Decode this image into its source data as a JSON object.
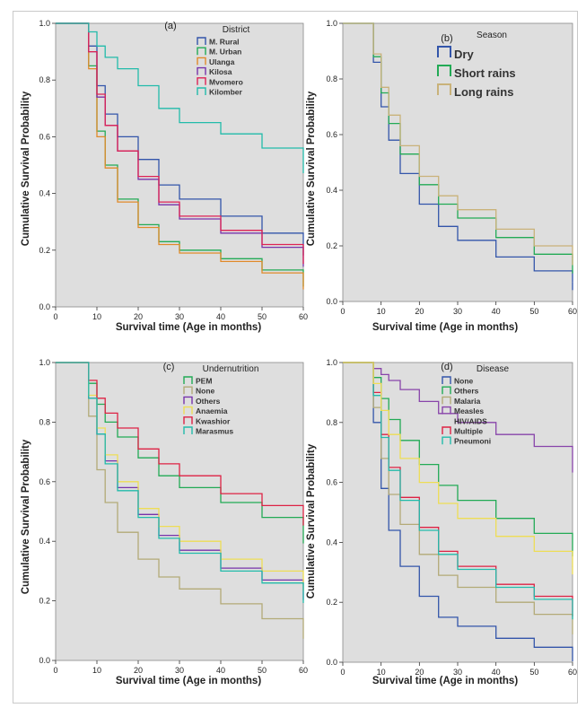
{
  "chart_data": [
    {
      "type": "line",
      "panel_label": "(a)",
      "xlabel": "Survival time (Age in months)",
      "ylabel": "Cumulative Survival Probability",
      "xlim": [
        0,
        60
      ],
      "ylim": [
        0,
        1.0
      ],
      "xticks": [
        0,
        10,
        20,
        30,
        40,
        50,
        60
      ],
      "yticks": [
        0.0,
        0.2,
        0.4,
        0.6,
        0.8,
        1.0
      ],
      "grid": false,
      "legend_title": "District",
      "legend_position": "top-right",
      "legend_size": "small",
      "series": [
        {
          "name": "M. Rural",
          "color": "#3355aa",
          "x": [
            0,
            6,
            8,
            10,
            12,
            15,
            20,
            25,
            30,
            40,
            50,
            60
          ],
          "y": [
            1.0,
            1.0,
            0.92,
            0.78,
            0.68,
            0.6,
            0.52,
            0.43,
            0.38,
            0.32,
            0.26,
            0.21
          ]
        },
        {
          "name": "M. Urban",
          "color": "#22aa55",
          "x": [
            0,
            6,
            8,
            10,
            12,
            15,
            20,
            25,
            30,
            40,
            50,
            60
          ],
          "y": [
            1.0,
            1.0,
            0.85,
            0.62,
            0.5,
            0.38,
            0.29,
            0.23,
            0.2,
            0.17,
            0.13,
            0.1
          ]
        },
        {
          "name": "Ulanga",
          "color": "#e08a2a",
          "x": [
            0,
            6,
            8,
            10,
            12,
            15,
            20,
            25,
            30,
            40,
            50,
            60
          ],
          "y": [
            1.0,
            1.0,
            0.84,
            0.6,
            0.49,
            0.37,
            0.28,
            0.22,
            0.19,
            0.16,
            0.12,
            0.09
          ]
        },
        {
          "name": "Kilosa",
          "color": "#7733aa",
          "x": [
            0,
            6,
            8,
            10,
            12,
            15,
            20,
            25,
            30,
            40,
            50,
            60
          ],
          "y": [
            1.0,
            1.0,
            0.9,
            0.74,
            0.64,
            0.55,
            0.45,
            0.36,
            0.31,
            0.26,
            0.21,
            0.17
          ]
        },
        {
          "name": "Mvomero",
          "color": "#dd2255",
          "x": [
            0,
            6,
            8,
            10,
            12,
            15,
            20,
            25,
            30,
            40,
            50,
            60
          ],
          "y": [
            1.0,
            1.0,
            0.9,
            0.75,
            0.64,
            0.55,
            0.46,
            0.37,
            0.32,
            0.27,
            0.22,
            0.18
          ]
        },
        {
          "name": "Kilomber",
          "color": "#22bbaa",
          "x": [
            0,
            6,
            8,
            10,
            12,
            15,
            20,
            25,
            30,
            40,
            50,
            60
          ],
          "y": [
            1.0,
            1.0,
            0.97,
            0.92,
            0.88,
            0.84,
            0.78,
            0.7,
            0.65,
            0.61,
            0.56,
            0.5
          ]
        }
      ]
    },
    {
      "type": "line",
      "panel_label": "(b)",
      "xlabel": "Survival time (Age in months)",
      "ylabel": "Cumulative Survival Probability",
      "xlim": [
        0,
        60
      ],
      "ylim": [
        0,
        1.0
      ],
      "xticks": [
        0,
        10,
        20,
        30,
        40,
        50,
        60
      ],
      "yticks": [
        0.0,
        0.2,
        0.4,
        0.6,
        0.8,
        1.0
      ],
      "grid": false,
      "legend_title": "Season",
      "legend_position": "top-right",
      "legend_size": "large",
      "series": [
        {
          "name": "Dry",
          "color": "#3355aa",
          "x": [
            0,
            6,
            8,
            10,
            12,
            15,
            20,
            25,
            30,
            40,
            50,
            60
          ],
          "y": [
            1.0,
            1.0,
            0.86,
            0.7,
            0.58,
            0.46,
            0.35,
            0.27,
            0.22,
            0.16,
            0.11,
            0.07
          ]
        },
        {
          "name": "Short rains",
          "color": "#22aa55",
          "x": [
            0,
            6,
            8,
            10,
            12,
            15,
            20,
            25,
            30,
            40,
            50,
            60
          ],
          "y": [
            1.0,
            1.0,
            0.88,
            0.75,
            0.64,
            0.53,
            0.42,
            0.35,
            0.3,
            0.23,
            0.17,
            0.13
          ]
        },
        {
          "name": "Long rains",
          "color": "#c9b27a",
          "x": [
            0,
            6,
            8,
            10,
            12,
            15,
            20,
            25,
            30,
            40,
            50,
            60
          ],
          "y": [
            1.0,
            1.0,
            0.89,
            0.77,
            0.67,
            0.56,
            0.45,
            0.38,
            0.33,
            0.26,
            0.2,
            0.16
          ]
        }
      ]
    },
    {
      "type": "line",
      "panel_label": "(c)",
      "xlabel": "Survival time (Age in months)",
      "ylabel": "Cumulative Survival Probability",
      "xlim": [
        0,
        60
      ],
      "ylim": [
        0,
        1.0
      ],
      "xticks": [
        0,
        10,
        20,
        30,
        40,
        50,
        60
      ],
      "yticks": [
        0.0,
        0.2,
        0.4,
        0.6,
        0.8,
        1.0
      ],
      "grid": false,
      "legend_title": "Undernutrition",
      "legend_position": "top-right",
      "legend_size": "small",
      "series": [
        {
          "name": "PEM",
          "color": "#22aa55",
          "x": [
            0,
            6,
            8,
            10,
            12,
            15,
            20,
            25,
            30,
            40,
            50,
            60
          ],
          "y": [
            1.0,
            1.0,
            0.93,
            0.86,
            0.8,
            0.75,
            0.68,
            0.62,
            0.58,
            0.53,
            0.48,
            0.42
          ]
        },
        {
          "name": "None",
          "color": "#b3aa77",
          "x": [
            0,
            6,
            8,
            10,
            12,
            15,
            20,
            25,
            30,
            40,
            50,
            60
          ],
          "y": [
            1.0,
            1.0,
            0.82,
            0.64,
            0.53,
            0.43,
            0.34,
            0.28,
            0.24,
            0.19,
            0.14,
            0.1
          ]
        },
        {
          "name": "Others",
          "color": "#7733aa",
          "x": [
            0,
            6,
            8,
            10,
            12,
            15,
            20,
            25,
            30,
            40,
            50,
            60
          ],
          "y": [
            1.0,
            1.0,
            0.88,
            0.76,
            0.67,
            0.58,
            0.49,
            0.42,
            0.37,
            0.31,
            0.27,
            0.23
          ]
        },
        {
          "name": "Anaemia",
          "color": "#eedd55",
          "x": [
            0,
            6,
            8,
            10,
            12,
            15,
            20,
            25,
            30,
            40,
            50,
            60
          ],
          "y": [
            1.0,
            1.0,
            0.89,
            0.78,
            0.69,
            0.6,
            0.51,
            0.45,
            0.4,
            0.34,
            0.3,
            0.26
          ]
        },
        {
          "name": "Kwashior",
          "color": "#dd2244",
          "x": [
            0,
            6,
            8,
            10,
            12,
            15,
            20,
            25,
            30,
            40,
            50,
            60
          ],
          "y": [
            1.0,
            1.0,
            0.94,
            0.88,
            0.83,
            0.78,
            0.71,
            0.66,
            0.62,
            0.56,
            0.52,
            0.48
          ]
        },
        {
          "name": "Marasmus",
          "color": "#22bbaa",
          "x": [
            0,
            6,
            8,
            10,
            12,
            15,
            20,
            25,
            30,
            40,
            50,
            60
          ],
          "y": [
            1.0,
            1.0,
            0.88,
            0.76,
            0.66,
            0.57,
            0.48,
            0.41,
            0.36,
            0.3,
            0.26,
            0.22
          ]
        }
      ]
    },
    {
      "type": "line",
      "panel_label": "(d)",
      "xlabel": "Survival time (Age in months)",
      "ylabel": "Cumulative Survival Probability",
      "xlim": [
        0,
        60
      ],
      "ylim": [
        0,
        1.0
      ],
      "xticks": [
        0,
        10,
        20,
        30,
        40,
        50,
        60
      ],
      "yticks": [
        0.0,
        0.2,
        0.4,
        0.6,
        0.8,
        1.0
      ],
      "grid": false,
      "legend_title": "Disease",
      "legend_position": "top-right",
      "legend_size": "small",
      "series": [
        {
          "name": "None",
          "color": "#3355aa",
          "x": [
            0,
            6,
            8,
            10,
            12,
            15,
            20,
            25,
            30,
            40,
            50,
            60
          ],
          "y": [
            1.0,
            1.0,
            0.8,
            0.58,
            0.44,
            0.32,
            0.22,
            0.15,
            0.12,
            0.08,
            0.05,
            0.03
          ]
        },
        {
          "name": "Others",
          "color": "#22aa55",
          "x": [
            0,
            6,
            8,
            10,
            12,
            15,
            20,
            25,
            30,
            40,
            50,
            60
          ],
          "y": [
            1.0,
            1.0,
            0.95,
            0.88,
            0.81,
            0.74,
            0.66,
            0.59,
            0.54,
            0.48,
            0.43,
            0.38
          ]
        },
        {
          "name": "Malaria",
          "color": "#b3aa77",
          "x": [
            0,
            6,
            8,
            10,
            12,
            15,
            20,
            25,
            30,
            40,
            50,
            60
          ],
          "y": [
            1.0,
            1.0,
            0.85,
            0.68,
            0.56,
            0.46,
            0.36,
            0.29,
            0.25,
            0.2,
            0.16,
            0.12
          ]
        },
        {
          "name": "Measles",
          "color": "#8844aa",
          "x": [
            0,
            6,
            8,
            10,
            12,
            15,
            20,
            25,
            30,
            40,
            50,
            60
          ],
          "y": [
            1.0,
            1.0,
            0.98,
            0.96,
            0.94,
            0.91,
            0.87,
            0.83,
            0.8,
            0.76,
            0.72,
            0.66
          ]
        },
        {
          "name": "HIV/AIDS",
          "color": "",
          "x": [],
          "y": []
        },
        {
          "name": "Multiple",
          "color": "#dd2244",
          "x": [
            0,
            6,
            8,
            10,
            12,
            15,
            20,
            25,
            30,
            40,
            50,
            60
          ],
          "y": [
            1.0,
            1.0,
            0.9,
            0.76,
            0.65,
            0.55,
            0.45,
            0.37,
            0.32,
            0.26,
            0.22,
            0.18
          ]
        },
        {
          "name": "Pneumoni",
          "color": "#22bbaa",
          "x": [
            0,
            6,
            8,
            10,
            12,
            15,
            20,
            25,
            30,
            40,
            50,
            60
          ],
          "y": [
            1.0,
            1.0,
            0.89,
            0.75,
            0.64,
            0.54,
            0.44,
            0.36,
            0.31,
            0.25,
            0.21,
            0.17
          ]
        },
        {
          "name": "",
          "color": "#eedd55",
          "x": [
            0,
            6,
            8,
            10,
            12,
            15,
            20,
            25,
            30,
            40,
            50,
            60
          ],
          "y": [
            1.0,
            1.0,
            0.93,
            0.84,
            0.76,
            0.68,
            0.6,
            0.53,
            0.48,
            0.42,
            0.37,
            0.32
          ]
        }
      ]
    }
  ]
}
